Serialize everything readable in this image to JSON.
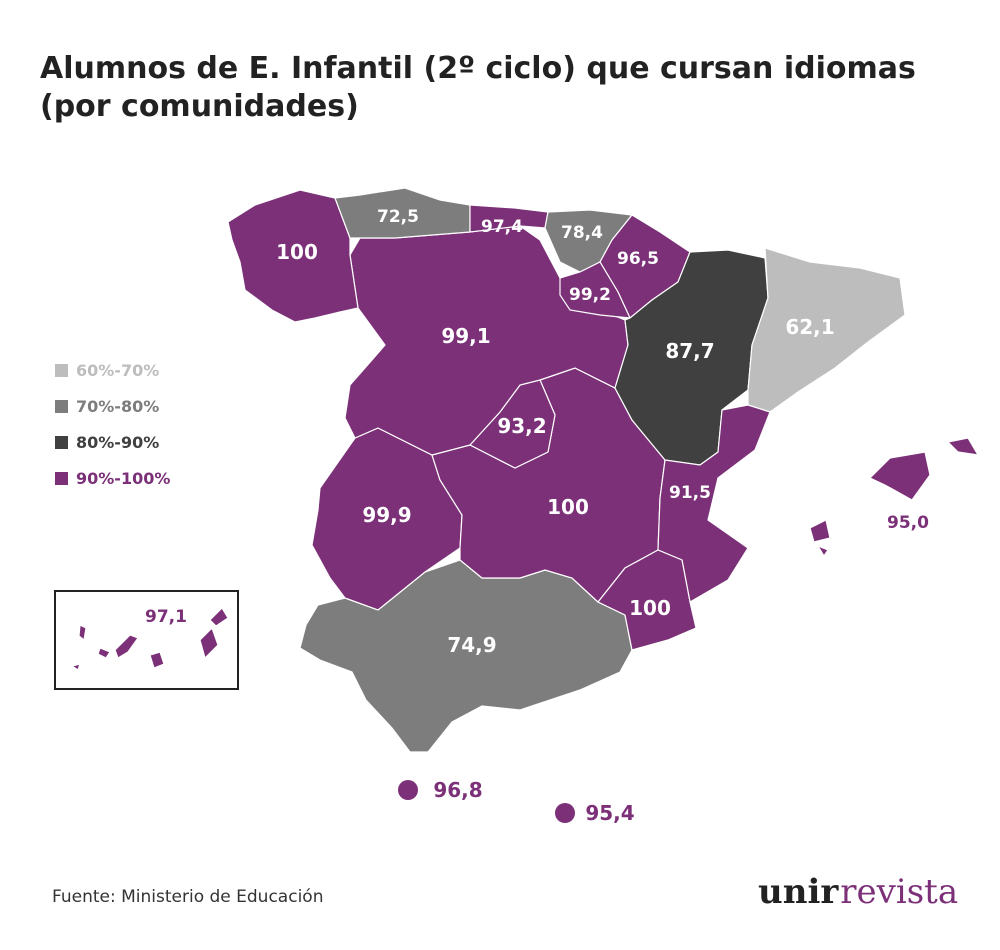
{
  "title": "Alumnos de E. Infantil (2º ciclo) que cursan idiomas (por comunidades)",
  "legend": [
    {
      "label": "60%-70%",
      "color": "#bdbdbd"
    },
    {
      "label": "70%-80%",
      "color": "#7d7d7d"
    },
    {
      "label": "80%-90%",
      "color": "#404040"
    },
    {
      "label": "90%-100%",
      "color": "#7b3078"
    }
  ],
  "colors": {
    "purple": "#7b3078",
    "light_gray": "#bdbdbd",
    "mid_gray": "#7d7d7d",
    "dark_gray": "#404040"
  },
  "regions": {
    "galicia": "100",
    "asturias": "72,5",
    "cantabria": "97,4",
    "pais_vasco": "78,4",
    "navarra": "96,5",
    "la_rioja": "99,2",
    "castilla_leon": "99,1",
    "aragon": "87,7",
    "cataluna": "62,1",
    "madrid": "93,2",
    "extremadura": "99,9",
    "castilla_la_mancha": "100",
    "valencia": "91,5",
    "murcia": "100",
    "andalucia": "74,9",
    "baleares": "95,0",
    "canarias": "97,1",
    "ceuta": "96,8",
    "melilla": "95,4"
  },
  "source": "Fuente: Ministerio de Educación",
  "brand": {
    "unir": "unir",
    "revista": "revista"
  }
}
